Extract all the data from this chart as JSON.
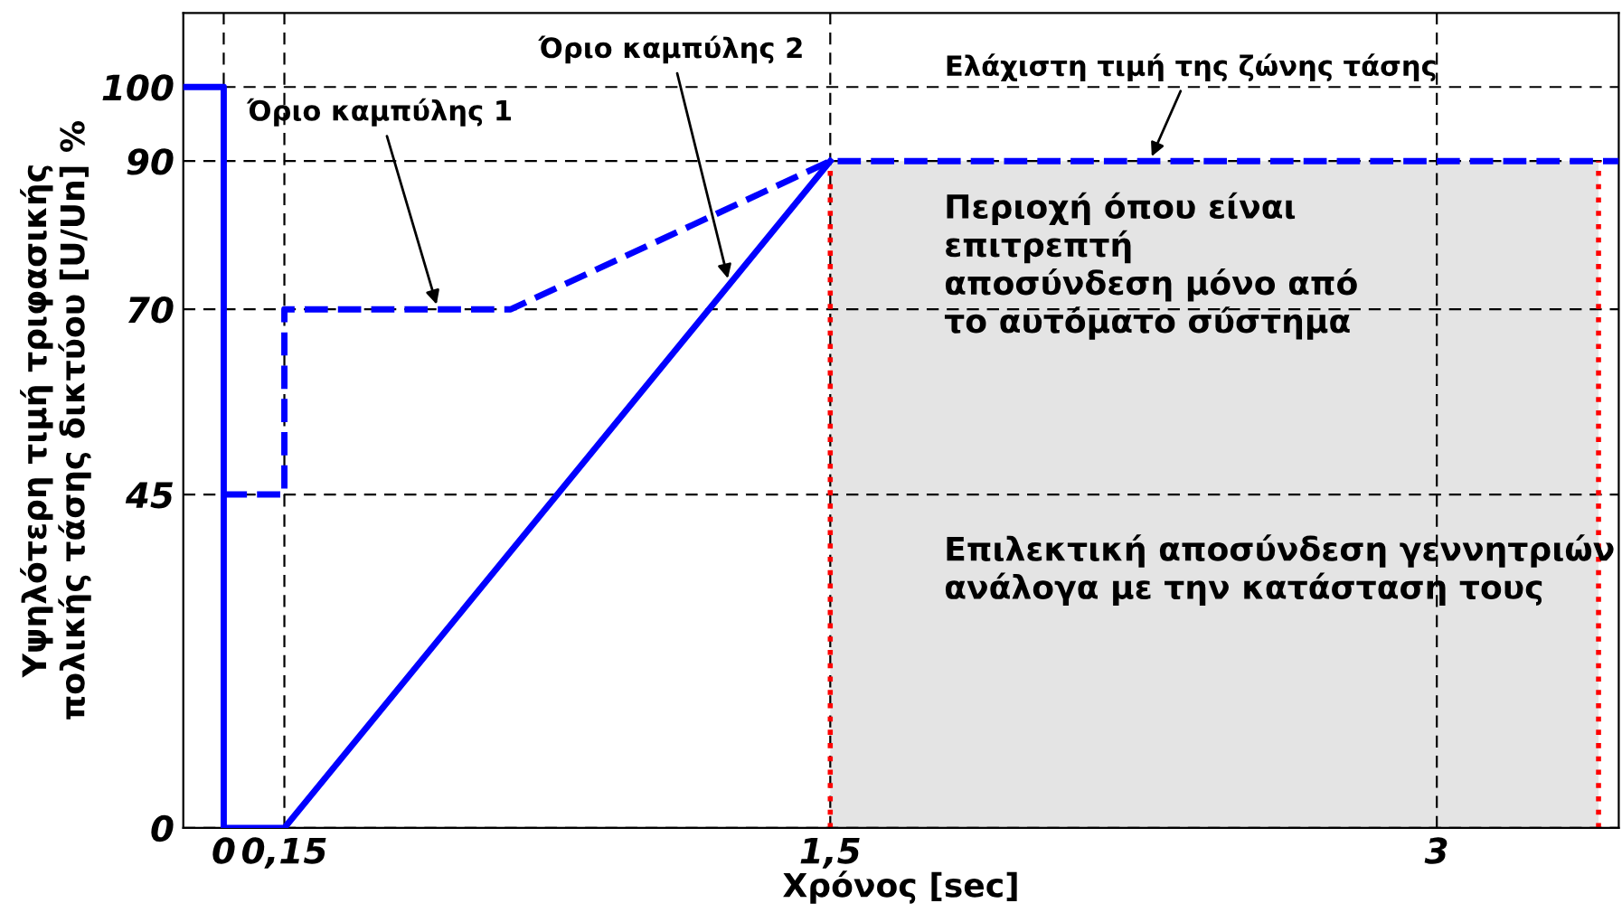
{
  "chart_data": {
    "type": "line",
    "xlabel": "Χρόνος [sec]",
    "ylabel": "Υψηλότερη τιμή τριφασικής\nπολικής τάσης δικτύου [U/Un] %",
    "series": [
      {
        "color": "#d9d9d9",
        "type": "area",
        "x": [
          1.5,
          3.4
        ],
        "values": [
          90,
          90
        ]
      },
      {
        "color": "#0000ff",
        "line_style": "solid",
        "x": [
          -0.1,
          0,
          0,
          0.15,
          1.5
        ],
        "values": [
          100,
          100,
          0,
          0,
          90
        ]
      },
      {
        "color": "#0000ff",
        "line_style": "dashed",
        "x": [
          0,
          0.15,
          0.15,
          0.71,
          1.5,
          3.45
        ],
        "values": [
          45,
          45,
          70,
          70,
          90,
          90
        ]
      }
    ],
    "xlim": [
      -0.1,
      3.45
    ],
    "ylim": [
      0,
      110
    ],
    "xticks": [
      0,
      {
        "value": 0.15,
        "label": "0,15"
      },
      {
        "value": 1.5,
        "label": "1,5"
      },
      3
    ],
    "yticks": [
      0,
      45,
      70,
      90,
      100
    ],
    "grid": true,
    "ref_lines": [
      {
        "axis": "x",
        "value": 1.5,
        "color": "#ff0000",
        "line_style": "dotted"
      },
      {
        "axis": "x",
        "value": 3.4,
        "color": "#ff0000",
        "line_style": "dotted"
      }
    ],
    "annotations": [
      {
        "text": "Όριο καμπύλης 1",
        "x": 0.53,
        "y": 70
      },
      {
        "text": "Όριο καμπύλης 2",
        "x": 1.25,
        "y": 73.5
      },
      {
        "text": "Ελάχιστη τιμή της ζώνης τάσης",
        "x": 2.29,
        "y": 90
      },
      "Περιοχή όπου είναι\nεπιτρεπτή\nαποσύνδεση μόνο από\nτο αυτόματο σύστημα",
      "Επιλεκτική αποσύνδεση γεννητριών\nανάλογα με την κατάσταση τους"
    ]
  }
}
